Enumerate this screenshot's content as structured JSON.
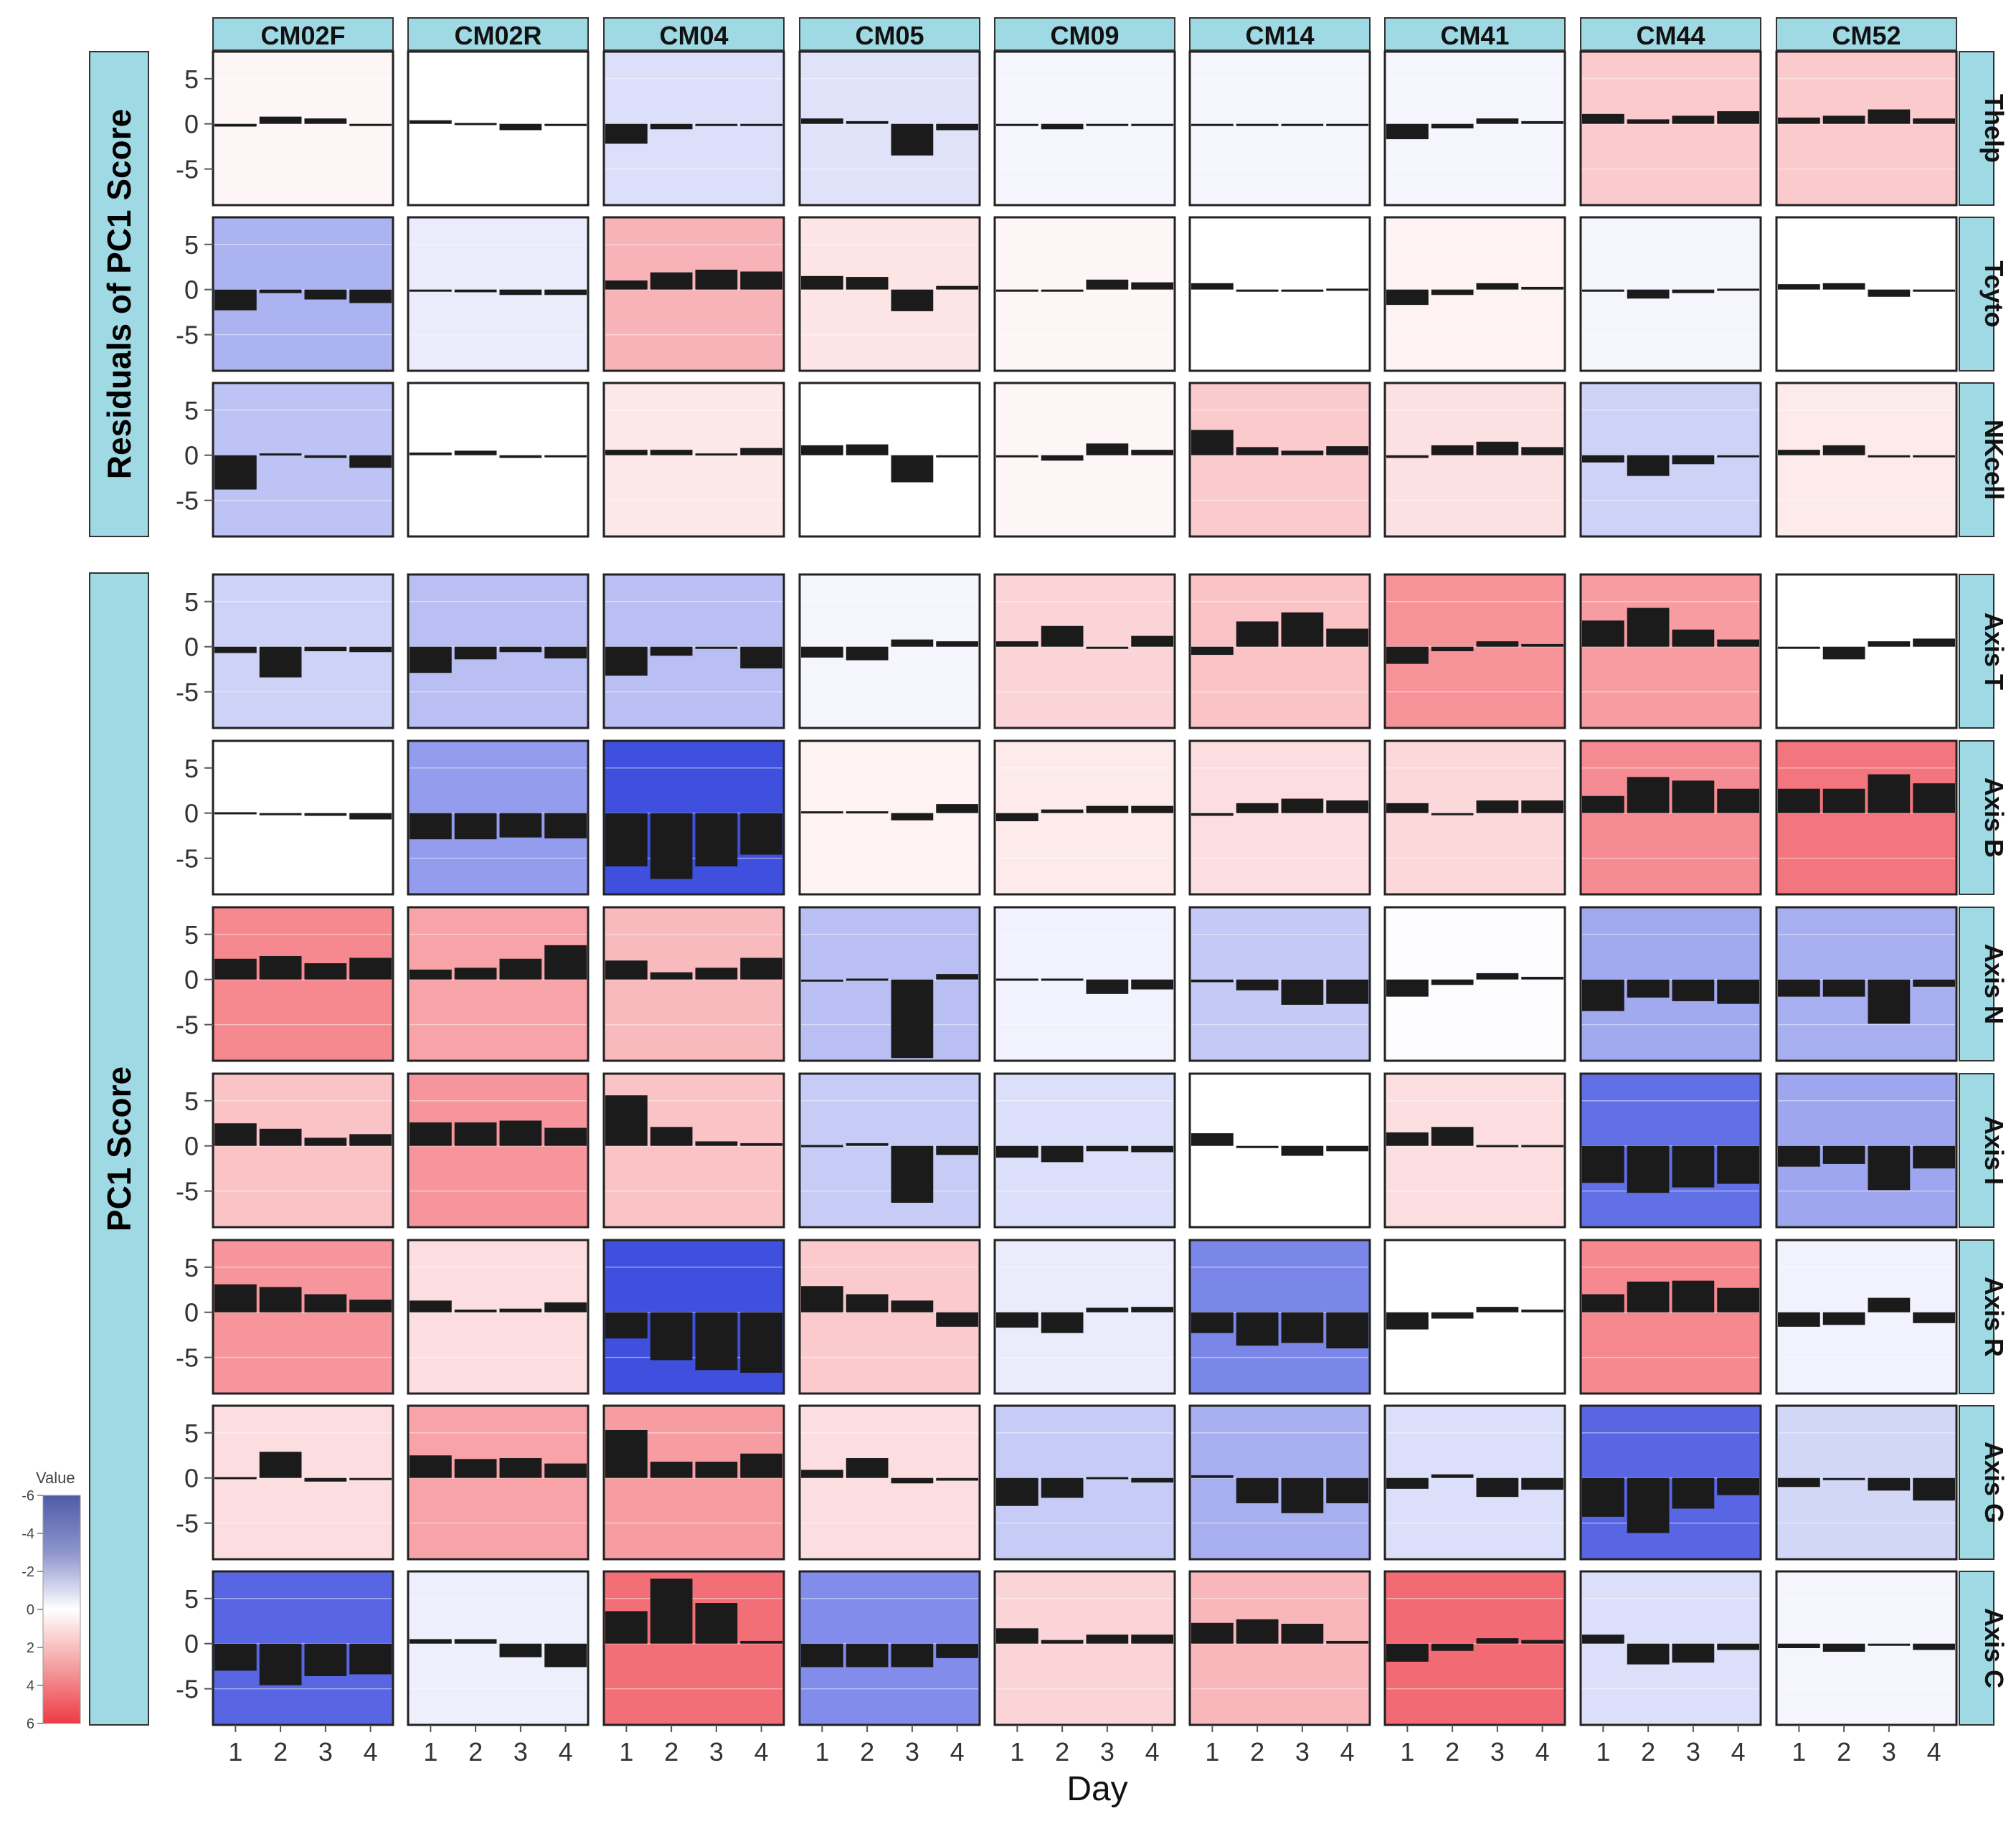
{
  "chart_data": {
    "type": "faceted-bar-heatmap",
    "xlabel": "Day",
    "x_ticks": [
      "1",
      "2",
      "3",
      "4"
    ],
    "y_ticks": [
      "5",
      "0",
      "-5"
    ],
    "ylim": [
      -9,
      8
    ],
    "column_labels": [
      "CM02F",
      "CM02R",
      "CM04",
      "CM05",
      "CM09",
      "CM14",
      "CM41",
      "CM44",
      "CM52"
    ],
    "row_labels": [
      "Thelp",
      "Tcyto",
      "NKcell",
      "Axis T",
      "Axis B",
      "Axis N",
      "Axis I",
      "Axis R",
      "Axis G",
      "Axis C"
    ],
    "groups": [
      {
        "label": "Residuals of PC1 Score",
        "rows": [
          0,
          2
        ]
      },
      {
        "label": "PC1 Score",
        "rows": [
          3,
          9
        ]
      }
    ],
    "legend": {
      "title": "Value",
      "ticks": [
        "-6",
        "-4",
        "-2",
        "0",
        "2",
        "4",
        "6"
      ],
      "range": [
        -6,
        6
      ],
      "position": "bottom-left"
    },
    "panels": [
      [
        {
          "value": 0.3,
          "bars": [
            -0.3,
            0.8,
            0.6,
            0.0
          ]
        },
        {
          "value": 0.0,
          "bars": [
            0.4,
            0.1,
            -0.7,
            -0.2
          ]
        },
        {
          "value": -1.0,
          "bars": [
            -2.2,
            -0.6,
            0.0,
            0.0
          ]
        },
        {
          "value": -0.9,
          "bars": [
            0.6,
            0.3,
            -3.5,
            -0.7
          ]
        },
        {
          "value": -0.3,
          "bars": [
            0.0,
            -0.6,
            -0.1,
            -0.2
          ]
        },
        {
          "value": -0.3,
          "bars": [
            -0.1,
            -0.2,
            -0.2,
            0.0
          ]
        },
        {
          "value": -0.3,
          "bars": [
            -1.7,
            -0.5,
            0.6,
            0.3
          ]
        },
        {
          "value": 1.6,
          "bars": [
            1.1,
            0.5,
            0.9,
            1.4
          ]
        },
        {
          "value": 1.6,
          "bars": [
            0.7,
            0.9,
            1.6,
            0.6
          ]
        }
      ],
      [
        {
          "value": -2.4,
          "bars": [
            -2.3,
            -0.4,
            -1.1,
            -1.5
          ]
        },
        {
          "value": -0.6,
          "bars": [
            -0.1,
            -0.3,
            -0.6,
            -0.6
          ]
        },
        {
          "value": 2.3,
          "bars": [
            1.0,
            1.9,
            2.2,
            2.0
          ]
        },
        {
          "value": 0.8,
          "bars": [
            1.5,
            1.4,
            -2.4,
            0.4
          ]
        },
        {
          "value": 0.3,
          "bars": [
            0.0,
            0.0,
            1.1,
            0.8
          ]
        },
        {
          "value": 0.0,
          "bars": [
            0.7,
            -0.1,
            -0.2,
            0.1
          ]
        },
        {
          "value": 0.4,
          "bars": [
            -1.7,
            -0.6,
            0.7,
            0.3
          ]
        },
        {
          "value": -0.3,
          "bars": [
            -0.1,
            -1.0,
            -0.4,
            0.1
          ]
        },
        {
          "value": 0.0,
          "bars": [
            0.6,
            0.7,
            -0.8,
            -0.1
          ]
        }
      ],
      [
        {
          "value": -1.9,
          "bars": [
            -3.8,
            0.2,
            -0.3,
            -1.4
          ]
        },
        {
          "value": 0.0,
          "bars": [
            0.3,
            0.5,
            -0.3,
            0.0
          ]
        },
        {
          "value": 0.7,
          "bars": [
            0.6,
            0.6,
            0.2,
            0.8
          ]
        },
        {
          "value": 0.0,
          "bars": [
            1.1,
            1.2,
            -3.0,
            0.0
          ]
        },
        {
          "value": 0.3,
          "bars": [
            0.0,
            -0.6,
            1.3,
            0.6
          ]
        },
        {
          "value": 1.6,
          "bars": [
            2.8,
            0.9,
            0.5,
            1.0
          ]
        },
        {
          "value": 0.9,
          "bars": [
            -0.3,
            1.1,
            1.5,
            0.9
          ]
        },
        {
          "value": -1.4,
          "bars": [
            -0.8,
            -2.3,
            -1.0,
            0.0
          ]
        },
        {
          "value": 0.6,
          "bars": [
            0.6,
            1.1,
            0.0,
            0.0
          ]
        }
      ],
      [
        {
          "value": -1.4,
          "bars": [
            -0.7,
            -3.4,
            -0.5,
            -0.6
          ]
        },
        {
          "value": -2.0,
          "bars": [
            -2.9,
            -1.4,
            -0.6,
            -1.3
          ]
        },
        {
          "value": -2.0,
          "bars": [
            -3.2,
            -1.0,
            -0.1,
            -2.4
          ]
        },
        {
          "value": -0.3,
          "bars": [
            -1.2,
            -1.5,
            0.8,
            0.6
          ]
        },
        {
          "value": 1.3,
          "bars": [
            0.6,
            2.3,
            0.0,
            1.2
          ]
        },
        {
          "value": 1.8,
          "bars": [
            -0.9,
            2.8,
            3.8,
            2.0
          ]
        },
        {
          "value": 3.3,
          "bars": [
            -1.9,
            -0.5,
            0.6,
            0.3
          ]
        },
        {
          "value": 3.0,
          "bars": [
            2.9,
            4.3,
            1.9,
            0.8
          ]
        },
        {
          "value": 0.0,
          "bars": [
            0.0,
            -1.4,
            0.6,
            0.9
          ]
        }
      ],
      [
        {
          "value": 0.0,
          "bars": [
            0.1,
            0.0,
            -0.3,
            -0.7
          ]
        },
        {
          "value": -3.1,
          "bars": [
            -2.9,
            -2.9,
            -2.7,
            -2.8
          ]
        },
        {
          "value": -5.5,
          "bars": [
            -5.9,
            -7.3,
            -5.9,
            -4.6
          ]
        },
        {
          "value": 0.4,
          "bars": [
            0.2,
            0.2,
            -0.8,
            1.0
          ]
        },
        {
          "value": 0.6,
          "bars": [
            -0.9,
            0.4,
            0.8,
            0.8
          ]
        },
        {
          "value": 1.0,
          "bars": [
            -0.3,
            1.1,
            1.6,
            1.4
          ]
        },
        {
          "value": 1.2,
          "bars": [
            1.1,
            -0.2,
            1.4,
            1.4
          ]
        },
        {
          "value": 3.5,
          "bars": [
            1.9,
            4.0,
            3.6,
            2.7
          ]
        },
        {
          "value": 4.2,
          "bars": [
            2.7,
            2.7,
            4.3,
            3.3
          ]
        }
      ],
      [
        {
          "value": 3.6,
          "bars": [
            2.3,
            2.6,
            1.8,
            2.4
          ]
        },
        {
          "value": 2.8,
          "bars": [
            1.1,
            1.3,
            2.3,
            3.8
          ]
        },
        {
          "value": 2.1,
          "bars": [
            2.1,
            0.8,
            1.3,
            2.4
          ]
        },
        {
          "value": -2.0,
          "bars": [
            0.0,
            0.1,
            -8.7,
            0.6
          ]
        },
        {
          "value": -0.4,
          "bars": [
            0.1,
            0.1,
            -1.6,
            -1.1
          ]
        },
        {
          "value": -1.7,
          "bars": [
            -0.3,
            -1.2,
            -2.8,
            -2.7
          ]
        },
        {
          "value": -0.1,
          "bars": [
            -1.9,
            -0.6,
            0.7,
            0.3
          ]
        },
        {
          "value": -2.7,
          "bars": [
            -3.5,
            -2.0,
            -2.4,
            -2.7
          ]
        },
        {
          "value": -2.5,
          "bars": [
            -1.9,
            -1.9,
            -4.9,
            -0.8
          ]
        }
      ],
      [
        {
          "value": 1.8,
          "bars": [
            2.5,
            1.9,
            0.9,
            1.3
          ]
        },
        {
          "value": 3.2,
          "bars": [
            2.6,
            2.6,
            2.8,
            2.0
          ]
        },
        {
          "value": 1.8,
          "bars": [
            5.6,
            2.1,
            0.5,
            0.3
          ]
        },
        {
          "value": -1.6,
          "bars": [
            0.1,
            0.3,
            -6.3,
            -1.0
          ]
        },
        {
          "value": -1.0,
          "bars": [
            -1.3,
            -1.8,
            -0.6,
            -0.7
          ]
        },
        {
          "value": 0.0,
          "bars": [
            1.4,
            0.0,
            -1.1,
            -0.6
          ]
        },
        {
          "value": 1.0,
          "bars": [
            1.5,
            2.1,
            0.1,
            0.1
          ]
        },
        {
          "value": -4.5,
          "bars": [
            -4.1,
            -5.2,
            -4.6,
            -4.2
          ]
        },
        {
          "value": -2.8,
          "bars": [
            -2.3,
            -2.0,
            -4.9,
            -2.5
          ]
        }
      ],
      [
        {
          "value": 3.2,
          "bars": [
            3.1,
            2.8,
            2.0,
            1.4
          ]
        },
        {
          "value": 1.0,
          "bars": [
            1.3,
            0.3,
            0.4,
            1.1
          ]
        },
        {
          "value": -5.5,
          "bars": [
            -2.9,
            -5.3,
            -6.4,
            -6.7
          ]
        },
        {
          "value": 1.6,
          "bars": [
            2.9,
            2.0,
            1.3,
            -1.6
          ]
        },
        {
          "value": -0.6,
          "bars": [
            -1.7,
            -2.3,
            0.5,
            0.6
          ]
        },
        {
          "value": -3.8,
          "bars": [
            -2.3,
            -3.7,
            -3.4,
            -4.0
          ]
        },
        {
          "value": 0.0,
          "bars": [
            -1.9,
            -0.7,
            0.6,
            0.3
          ]
        },
        {
          "value": 3.6,
          "bars": [
            2.0,
            3.4,
            3.5,
            2.7
          ]
        },
        {
          "value": -0.4,
          "bars": [
            -1.6,
            -1.4,
            1.6,
            -1.2
          ]
        }
      ],
      [
        {
          "value": 1.0,
          "bars": [
            0.1,
            2.9,
            -0.4,
            0.0
          ]
        },
        {
          "value": 2.8,
          "bars": [
            2.5,
            2.1,
            2.2,
            1.6
          ]
        },
        {
          "value": 3.0,
          "bars": [
            5.3,
            1.8,
            1.8,
            2.7
          ]
        },
        {
          "value": 1.0,
          "bars": [
            0.9,
            2.2,
            -0.6,
            -0.3
          ]
        },
        {
          "value": -1.6,
          "bars": [
            -3.1,
            -2.2,
            0.1,
            -0.5
          ]
        },
        {
          "value": -2.5,
          "bars": [
            0.3,
            -2.8,
            -3.9,
            -2.8
          ]
        },
        {
          "value": -1.0,
          "bars": [
            -1.2,
            0.4,
            -2.1,
            -1.3
          ]
        },
        {
          "value": -4.8,
          "bars": [
            -4.3,
            -6.1,
            -3.4,
            -1.9
          ]
        },
        {
          "value": -1.3,
          "bars": [
            -1.0,
            -0.2,
            -1.4,
            -2.5
          ]
        }
      ],
      [
        {
          "value": -4.8,
          "bars": [
            -3.0,
            -4.6,
            -3.6,
            -3.4
          ]
        },
        {
          "value": -0.5,
          "bars": [
            0.5,
            0.5,
            -1.5,
            -2.6
          ]
        },
        {
          "value": 4.4,
          "bars": [
            3.6,
            7.2,
            4.5,
            0.3
          ]
        },
        {
          "value": -3.6,
          "bars": [
            -2.6,
            -2.6,
            -2.6,
            -1.6
          ]
        },
        {
          "value": 1.3,
          "bars": [
            1.7,
            0.4,
            1.0,
            1.0
          ]
        },
        {
          "value": 2.2,
          "bars": [
            2.3,
            2.7,
            2.2,
            0.3
          ]
        },
        {
          "value": 4.5,
          "bars": [
            -2.0,
            -0.8,
            0.6,
            0.4
          ]
        },
        {
          "value": -1.0,
          "bars": [
            1.0,
            -2.3,
            -2.1,
            -0.7
          ]
        },
        {
          "value": -0.3,
          "bars": [
            -0.5,
            -0.9,
            0.0,
            -0.7
          ]
        }
      ]
    ]
  }
}
